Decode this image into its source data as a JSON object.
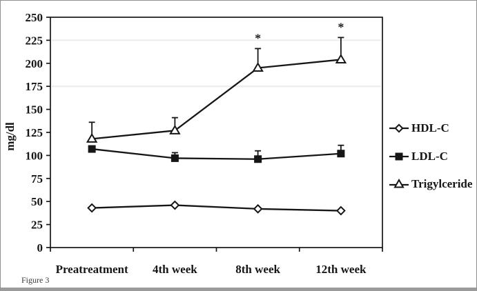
{
  "figure": {
    "caption": "Figure 3"
  },
  "chart_data": {
    "type": "line",
    "title": "",
    "xlabel": "",
    "ylabel": "mg/dl",
    "ylim": [
      0,
      250
    ],
    "yticks": [
      0,
      25,
      50,
      75,
      100,
      125,
      150,
      175,
      200,
      225,
      250
    ],
    "categories": [
      "Preatreatment",
      "4th week",
      "8th week",
      "12th week"
    ],
    "series": [
      {
        "name": "HDL-C",
        "marker": "diamond-open",
        "values": [
          43,
          46,
          42,
          40
        ],
        "error_up": [
          0,
          0,
          0,
          0
        ]
      },
      {
        "name": "LDL-C",
        "marker": "square-filled",
        "values": [
          107,
          97,
          96,
          102
        ],
        "error_up": [
          0,
          6,
          9,
          9
        ]
      },
      {
        "name": "Trigylceride",
        "marker": "triangle-open",
        "values": [
          118,
          127,
          195,
          204
        ],
        "error_up": [
          18,
          14,
          21,
          24
        ]
      }
    ],
    "annotations": [
      {
        "text": "*",
        "series_index": 2,
        "category_index": 2
      },
      {
        "text": "*",
        "series_index": 2,
        "category_index": 3
      }
    ],
    "legend_position": "right",
    "grid": false,
    "faint_gridlines": [
      225,
      175
    ],
    "line_color": "#161616",
    "background": "#ffffff"
  }
}
